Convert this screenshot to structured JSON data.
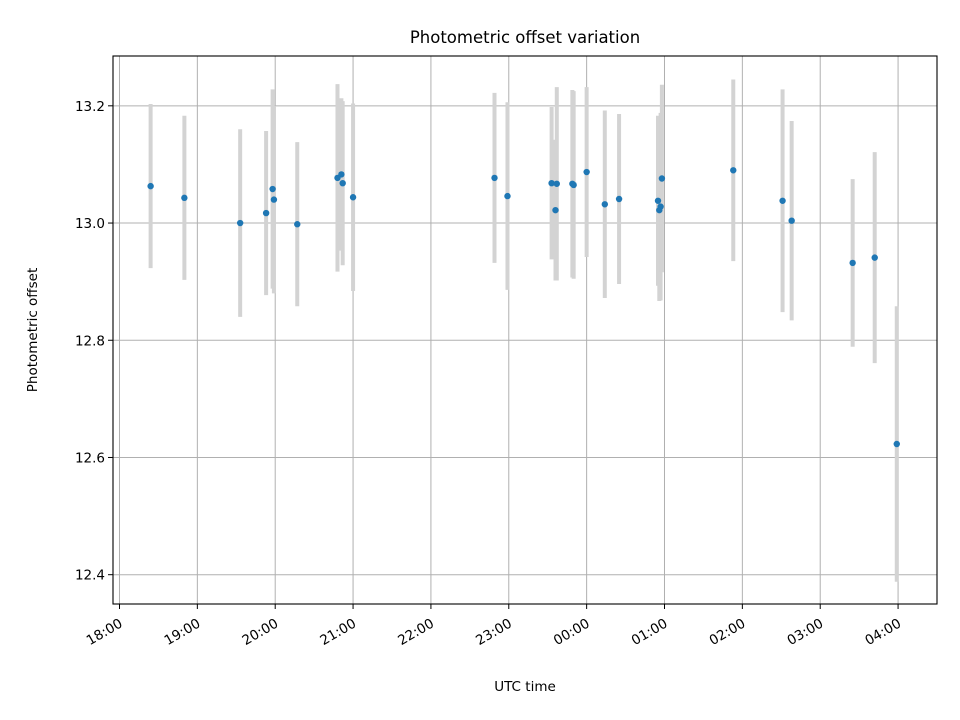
{
  "chart_data": {
    "type": "scatter",
    "title": "Photometric offset variation",
    "xlabel": "UTC time",
    "ylabel": "Photometric offset",
    "x_tick_labels": [
      "18:00",
      "19:00",
      "20:00",
      "21:00",
      "22:00",
      "23:00",
      "00:00",
      "01:00",
      "02:00",
      "03:00",
      "04:00"
    ],
    "y_ticks": [
      12.4,
      12.6,
      12.8,
      13.0,
      13.2
    ],
    "y_tick_labels": [
      "12.4",
      "12.6",
      "12.8",
      "13.0",
      "13.2"
    ],
    "xlim": [
      "17:55",
      "04:30"
    ],
    "ylim": [
      12.35,
      13.285
    ],
    "grid": true,
    "series": [
      {
        "marker_color": "#1f77b4",
        "errorbar_color": "#d3d3d3",
        "points": [
          {
            "x": "18:24",
            "y": 13.063,
            "yerr": 0.14
          },
          {
            "x": "18:50",
            "y": 13.043,
            "yerr": 0.14
          },
          {
            "x": "19:33",
            "y": 13.0,
            "yerr": 0.16
          },
          {
            "x": "19:53",
            "y": 13.017,
            "yerr": 0.14
          },
          {
            "x": "19:58",
            "y": 13.058,
            "yerr": 0.17
          },
          {
            "x": "19:59",
            "y": 13.04,
            "yerr": 0.16
          },
          {
            "x": "20:17",
            "y": 12.998,
            "yerr": 0.14
          },
          {
            "x": "20:48",
            "y": 13.077,
            "yerr": 0.16
          },
          {
            "x": "20:51",
            "y": 13.083,
            "yerr": 0.13
          },
          {
            "x": "20:52",
            "y": 13.068,
            "yerr": 0.14
          },
          {
            "x": "21:00",
            "y": 13.044,
            "yerr": 0.16
          },
          {
            "x": "22:49",
            "y": 13.077,
            "yerr": 0.145
          },
          {
            "x": "22:59",
            "y": 13.046,
            "yerr": 0.16
          },
          {
            "x": "23:33",
            "y": 13.068,
            "yerr": 0.13
          },
          {
            "x": "23:36",
            "y": 13.022,
            "yerr": 0.12
          },
          {
            "x": "23:37",
            "y": 13.067,
            "yerr": 0.165
          },
          {
            "x": "23:49",
            "y": 13.067,
            "yerr": 0.16
          },
          {
            "x": "23:50",
            "y": 13.065,
            "yerr": 0.16
          },
          {
            "x": "00:00",
            "y": 13.087,
            "yerr": 0.145
          },
          {
            "x": "00:14",
            "y": 13.032,
            "yerr": 0.16
          },
          {
            "x": "00:25",
            "y": 13.041,
            "yerr": 0.145
          },
          {
            "x": "00:55",
            "y": 13.038,
            "yerr": 0.145
          },
          {
            "x": "00:56",
            "y": 13.022,
            "yerr": 0.155
          },
          {
            "x": "00:57",
            "y": 13.028,
            "yerr": 0.16
          },
          {
            "x": "00:58",
            "y": 13.076,
            "yerr": 0.16
          },
          {
            "x": "01:53",
            "y": 13.09,
            "yerr": 0.155
          },
          {
            "x": "02:31",
            "y": 13.038,
            "yerr": 0.19
          },
          {
            "x": "02:38",
            "y": 13.004,
            "yerr": 0.17
          },
          {
            "x": "03:25",
            "y": 12.932,
            "yerr": 0.143
          },
          {
            "x": "03:42",
            "y": 12.941,
            "yerr": 0.18
          },
          {
            "x": "03:59",
            "y": 12.623,
            "yerr": 0.235
          }
        ]
      }
    ]
  }
}
